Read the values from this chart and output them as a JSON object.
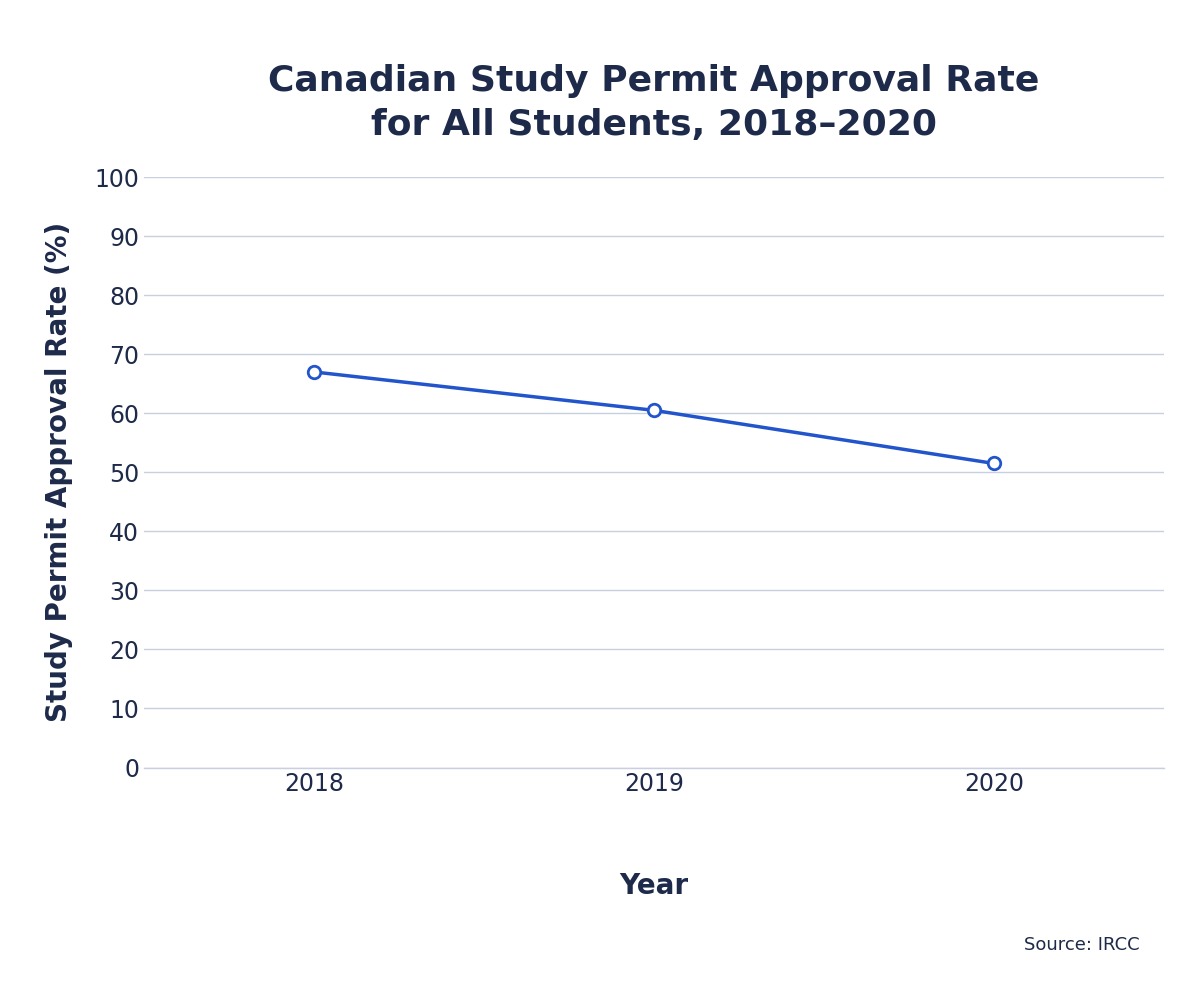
{
  "title": "Canadian Study Permit Approval Rate\nfor All Students, 2018–2020",
  "xlabel": "Year",
  "ylabel": "Study Permit Approval Rate (%)",
  "years": [
    2018,
    2019,
    2020
  ],
  "values": [
    67,
    60.5,
    51.5
  ],
  "line_color": "#2255cc",
  "marker_color": "#2255cc",
  "marker_face": "#ffffff",
  "background_color": "#ffffff",
  "grid_color": "#c8d0e0",
  "tick_color": "#1e2a4a",
  "title_color": "#1e2a4a",
  "label_color": "#1e2a4a",
  "source_text": "Source: IRCC",
  "ylim": [
    0,
    100
  ],
  "yticks": [
    0,
    10,
    20,
    30,
    40,
    50,
    60,
    70,
    80,
    90,
    100
  ],
  "title_fontsize": 26,
  "label_fontsize": 20,
  "tick_fontsize": 17,
  "source_fontsize": 13
}
